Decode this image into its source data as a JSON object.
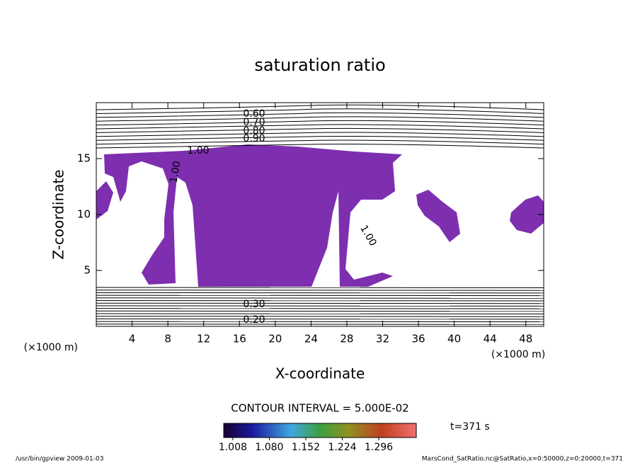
{
  "chart_data": {
    "type": "contour",
    "title": "saturation ratio",
    "x_label": "X-coordinate",
    "y_label": "Z-coordinate",
    "x_unit": "(×1000 m)",
    "y_unit": "(×1000 m)",
    "xlim": [
      0,
      50
    ],
    "xticks": [
      4,
      8,
      12,
      16,
      20,
      24,
      28,
      32,
      36,
      40,
      44,
      48
    ],
    "ylim": [
      0,
      20
    ],
    "yticks": [
      5,
      10,
      15
    ],
    "fill_color": "#7d2fb0",
    "contour_labels": [
      {
        "value": 0.6,
        "label": "0.60"
      },
      {
        "value": 0.7,
        "label": "0.70"
      },
      {
        "value": 0.8,
        "label": "0.80"
      },
      {
        "value": 0.9,
        "label": "0.90"
      },
      {
        "value": 1,
        "label": "1.00"
      },
      {
        "value": 1,
        "label": "1.00"
      },
      {
        "value": 1,
        "label": "1.00"
      },
      {
        "value": 0.3,
        "label": "0.30"
      },
      {
        "value": 0.2,
        "label": "0.20"
      }
    ],
    "contour_interval": "CONTOUR INTERVAL = 5.000E-02",
    "time_label": "t=371 s",
    "clim": [
      0.99,
      1.37
    ],
    "cticks": [
      1.008,
      {
        "value": 1.08,
        "label": "1.080"
      },
      1.152,
      1.224,
      1.296
    ],
    "footer_left": "/usr/bin/gpview  2009-01-03",
    "footer_right": "MarsCond_SatRatio.nc@SatRatio,x=0:50000,z=0:20000,t=371"
  }
}
